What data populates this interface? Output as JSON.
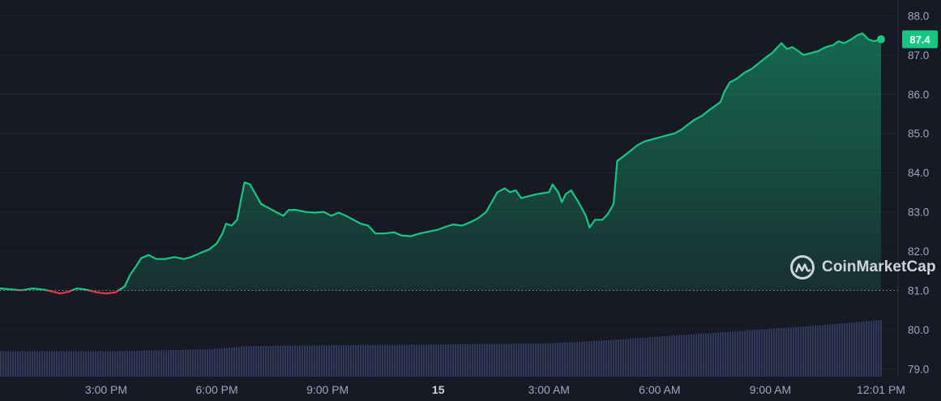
{
  "chart_data": {
    "type": "area",
    "colors": {
      "background": "#171924",
      "up": "#16c784",
      "down": "#ea3943",
      "volume": "#2f3a5c",
      "grid": "#22252f"
    },
    "baseline": 81.0,
    "ylim": [
      78.8,
      88.4
    ],
    "y_ticks": [
      {
        "value": 88.0,
        "label": "88.0"
      },
      {
        "value": 87.0,
        "label": "87.0"
      },
      {
        "value": 86.0,
        "label": "86.0"
      },
      {
        "value": 85.0,
        "label": "85.0"
      },
      {
        "value": 84.0,
        "label": "84.0"
      },
      {
        "value": 83.0,
        "label": "83.0"
      },
      {
        "value": 82.0,
        "label": "82.0"
      },
      {
        "value": 81.0,
        "label": "81.0"
      },
      {
        "value": 80.0,
        "label": "80.0"
      },
      {
        "value": 79.0,
        "label": "79.0"
      }
    ],
    "x_ticks": [
      {
        "hour": 3,
        "label": "3:00 PM"
      },
      {
        "hour": 6,
        "label": "6:00 PM"
      },
      {
        "hour": 9,
        "label": "9:00 PM"
      },
      {
        "hour": 12,
        "label": "15",
        "bold": true
      },
      {
        "hour": 15,
        "label": "3:00 AM"
      },
      {
        "hour": 18,
        "label": "6:00 AM"
      },
      {
        "hour": 21,
        "label": "9:00 AM"
      },
      {
        "hour": 24,
        "label": "12:01 PM"
      }
    ],
    "xlim": [
      0.4,
      25.5
    ],
    "current_price": {
      "hour": 24.0,
      "value": 87.4,
      "label": "87.4"
    },
    "price_points": [
      [
        0.4,
        81.05
      ],
      [
        0.7,
        81.0
      ],
      [
        1.0,
        81.05
      ],
      [
        1.3,
        81.02
      ],
      [
        1.55,
        80.97
      ],
      [
        1.75,
        80.92
      ],
      [
        2.0,
        80.97
      ],
      [
        2.2,
        81.05
      ],
      [
        2.45,
        81.02
      ],
      [
        2.75,
        80.95
      ],
      [
        3.0,
        80.92
      ],
      [
        3.25,
        80.95
      ],
      [
        3.5,
        81.1
      ],
      [
        3.65,
        81.4
      ],
      [
        3.8,
        81.6
      ],
      [
        3.95,
        81.82
      ],
      [
        4.15,
        81.9
      ],
      [
        4.35,
        81.8
      ],
      [
        4.6,
        81.8
      ],
      [
        4.85,
        81.85
      ],
      [
        5.1,
        81.8
      ],
      [
        5.3,
        81.85
      ],
      [
        5.55,
        81.95
      ],
      [
        5.8,
        82.05
      ],
      [
        6.0,
        82.2
      ],
      [
        6.15,
        82.45
      ],
      [
        6.25,
        82.7
      ],
      [
        6.4,
        82.65
      ],
      [
        6.55,
        82.8
      ],
      [
        6.65,
        83.3
      ],
      [
        6.75,
        83.75
      ],
      [
        6.9,
        83.7
      ],
      [
        7.05,
        83.45
      ],
      [
        7.2,
        83.2
      ],
      [
        7.4,
        83.1
      ],
      [
        7.6,
        83.0
      ],
      [
        7.8,
        82.9
      ],
      [
        7.95,
        83.05
      ],
      [
        8.15,
        83.05
      ],
      [
        8.4,
        83.0
      ],
      [
        8.65,
        82.98
      ],
      [
        8.9,
        83.0
      ],
      [
        9.1,
        82.9
      ],
      [
        9.3,
        82.98
      ],
      [
        9.5,
        82.9
      ],
      [
        9.7,
        82.8
      ],
      [
        9.9,
        82.7
      ],
      [
        10.1,
        82.65
      ],
      [
        10.3,
        82.45
      ],
      [
        10.55,
        82.45
      ],
      [
        10.8,
        82.48
      ],
      [
        11.0,
        82.4
      ],
      [
        11.25,
        82.38
      ],
      [
        11.5,
        82.45
      ],
      [
        11.75,
        82.5
      ],
      [
        12.0,
        82.55
      ],
      [
        12.2,
        82.62
      ],
      [
        12.4,
        82.68
      ],
      [
        12.65,
        82.65
      ],
      [
        12.9,
        82.75
      ],
      [
        13.1,
        82.85
      ],
      [
        13.3,
        83.0
      ],
      [
        13.45,
        83.25
      ],
      [
        13.6,
        83.5
      ],
      [
        13.8,
        83.6
      ],
      [
        13.95,
        83.5
      ],
      [
        14.1,
        83.55
      ],
      [
        14.25,
        83.35
      ],
      [
        14.45,
        83.4
      ],
      [
        14.65,
        83.45
      ],
      [
        14.85,
        83.48
      ],
      [
        15.0,
        83.5
      ],
      [
        15.1,
        83.7
      ],
      [
        15.25,
        83.5
      ],
      [
        15.35,
        83.25
      ],
      [
        15.45,
        83.45
      ],
      [
        15.6,
        83.55
      ],
      [
        15.8,
        83.25
      ],
      [
        16.0,
        82.9
      ],
      [
        16.1,
        82.6
      ],
      [
        16.25,
        82.8
      ],
      [
        16.45,
        82.8
      ],
      [
        16.6,
        82.95
      ],
      [
        16.75,
        83.2
      ],
      [
        16.85,
        84.3
      ],
      [
        17.0,
        84.4
      ],
      [
        17.2,
        84.55
      ],
      [
        17.4,
        84.7
      ],
      [
        17.6,
        84.8
      ],
      [
        17.8,
        84.85
      ],
      [
        18.0,
        84.9
      ],
      [
        18.2,
        84.95
      ],
      [
        18.4,
        85.0
      ],
      [
        18.6,
        85.1
      ],
      [
        18.8,
        85.25
      ],
      [
        18.95,
        85.35
      ],
      [
        19.15,
        85.45
      ],
      [
        19.35,
        85.6
      ],
      [
        19.5,
        85.7
      ],
      [
        19.65,
        85.8
      ],
      [
        19.75,
        86.05
      ],
      [
        19.9,
        86.3
      ],
      [
        20.1,
        86.4
      ],
      [
        20.3,
        86.55
      ],
      [
        20.5,
        86.65
      ],
      [
        20.7,
        86.8
      ],
      [
        20.9,
        86.95
      ],
      [
        21.05,
        87.05
      ],
      [
        21.2,
        87.2
      ],
      [
        21.3,
        87.3
      ],
      [
        21.45,
        87.15
      ],
      [
        21.6,
        87.2
      ],
      [
        21.75,
        87.1
      ],
      [
        21.9,
        87.0
      ],
      [
        22.1,
        87.05
      ],
      [
        22.3,
        87.1
      ],
      [
        22.5,
        87.2
      ],
      [
        22.7,
        87.25
      ],
      [
        22.85,
        87.35
      ],
      [
        23.0,
        87.3
      ],
      [
        23.2,
        87.4
      ],
      [
        23.35,
        87.5
      ],
      [
        23.5,
        87.55
      ],
      [
        23.65,
        87.4
      ],
      [
        23.8,
        87.35
      ],
      [
        24.0,
        87.4
      ]
    ],
    "volume_points": [
      [
        0.4,
        79.45
      ],
      [
        3.5,
        79.45
      ],
      [
        4.5,
        79.47
      ],
      [
        6.0,
        79.5
      ],
      [
        7.0,
        79.58
      ],
      [
        9.0,
        79.6
      ],
      [
        12.0,
        79.62
      ],
      [
        15.0,
        79.65
      ],
      [
        16.5,
        79.72
      ],
      [
        18.0,
        79.82
      ],
      [
        19.5,
        79.92
      ],
      [
        21.0,
        80.02
      ],
      [
        22.5,
        80.12
      ],
      [
        24.0,
        80.25
      ]
    ]
  },
  "watermark": {
    "text": "CoinMarketCap",
    "icon": "coinmarketcap-logo-icon"
  }
}
